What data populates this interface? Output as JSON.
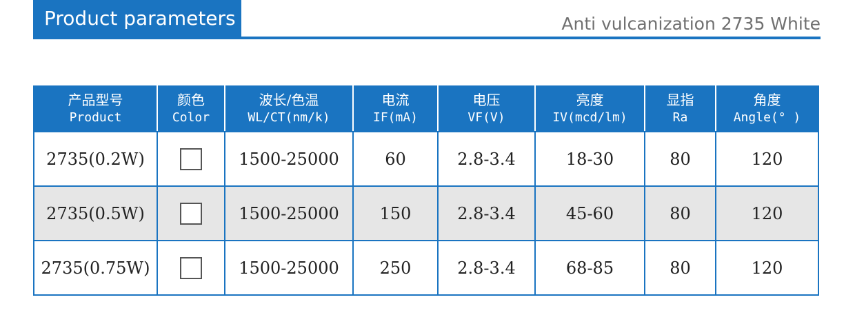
{
  "header": {
    "title": "Product parameters",
    "subtitle": "Anti vulcanization 2735 White"
  },
  "colors": {
    "accent": "#1a74c1",
    "row_alt": "#e6e6e6"
  },
  "table": {
    "columns": [
      {
        "zh": "产品型号",
        "en": "Product"
      },
      {
        "zh": "颜色",
        "en": "Color"
      },
      {
        "zh": "波长/色温",
        "en": "WL/CT(nm/k)"
      },
      {
        "zh": "电流",
        "en": "IF(mA)"
      },
      {
        "zh": "电压",
        "en": "VF(V)"
      },
      {
        "zh": "亮度",
        "en": "IV(mcd/lm)"
      },
      {
        "zh": "显指",
        "en": "Ra"
      },
      {
        "zh": "角度",
        "en": "Angle(° )"
      }
    ],
    "rows": [
      {
        "product": "2735(0.2W)",
        "color": "white",
        "wl": "1500-25000",
        "if": "60",
        "vf": "2.8-3.4",
        "iv": "18-30",
        "ra": "80",
        "angle": "120"
      },
      {
        "product": "2735(0.5W)",
        "color": "white",
        "wl": "1500-25000",
        "if": "150",
        "vf": "2.8-3.4",
        "iv": "45-60",
        "ra": "80",
        "angle": "120"
      },
      {
        "product": "2735(0.75W)",
        "color": "white",
        "wl": "1500-25000",
        "if": "250",
        "vf": "2.8-3.4",
        "iv": "68-85",
        "ra": "80",
        "angle": "120"
      }
    ]
  }
}
